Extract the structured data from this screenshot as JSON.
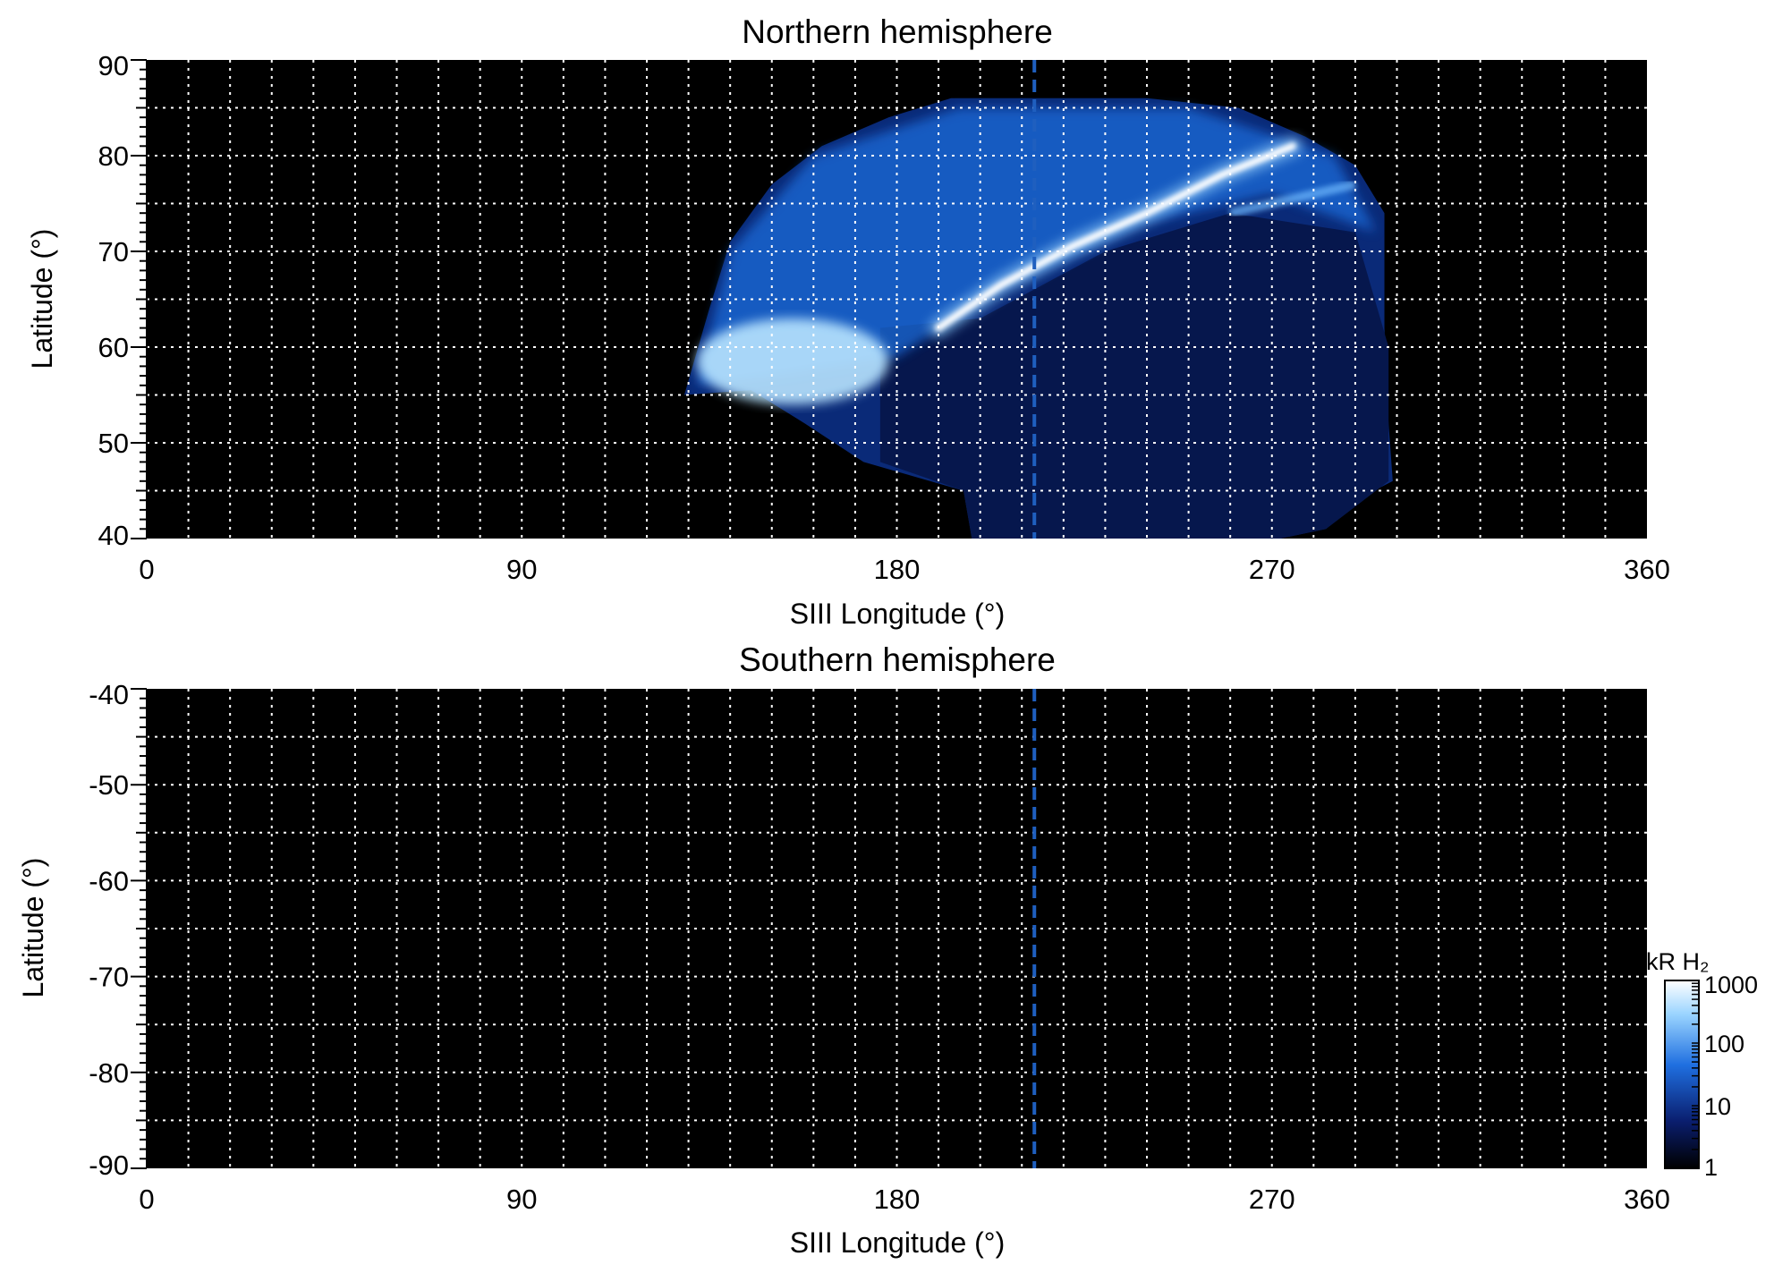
{
  "chart_data": [
    {
      "type": "heatmap",
      "title": "Northern hemisphere",
      "xlabel": "SIII Longitude (°)",
      "ylabel": "Latitude (°)",
      "xlim": [
        0,
        360
      ],
      "ylim": [
        40,
        90
      ],
      "x_ticks": [
        0,
        90,
        180,
        270,
        360
      ],
      "y_ticks": [
        40,
        50,
        60,
        70,
        80,
        90
      ],
      "grid": true,
      "reference_line_longitude": 213,
      "emission_coverage": {
        "longitude_range": [
          129,
          298
        ],
        "latitude_range": [
          40,
          86
        ],
        "main_oval_arc": [
          [
            190,
            62
          ],
          [
            205,
            66.5
          ],
          [
            222,
            70.5
          ],
          [
            240,
            74
          ],
          [
            258,
            78
          ],
          [
            275,
            81
          ]
        ],
        "bright_region": {
          "longitude_range": [
            132,
            178
          ],
          "latitude_range": [
            54,
            63
          ]
        }
      }
    },
    {
      "type": "heatmap",
      "title": "Southern hemisphere",
      "xlabel": "SIII Longitude (°)",
      "ylabel": "Latitude (°)",
      "xlim": [
        0,
        360
      ],
      "ylim": [
        -90,
        -40
      ],
      "x_ticks": [
        0,
        90,
        180,
        270,
        360
      ],
      "y_ticks": [
        -40,
        -50,
        -60,
        -70,
        -80,
        -90
      ],
      "grid": true,
      "reference_line_longitude": 213,
      "emission_coverage": null
    }
  ],
  "colorbar": {
    "label": "kR H₂",
    "ticks": [
      1,
      10,
      100,
      1000
    ],
    "scale": "log",
    "colors": [
      "#000000",
      "#0a1e6e",
      "#1f6fe0",
      "#9ad4ff",
      "#ffffff"
    ]
  },
  "colors": {
    "background": "#000000",
    "grid": "#ffffff",
    "reference_line": "#1f5fbf"
  }
}
